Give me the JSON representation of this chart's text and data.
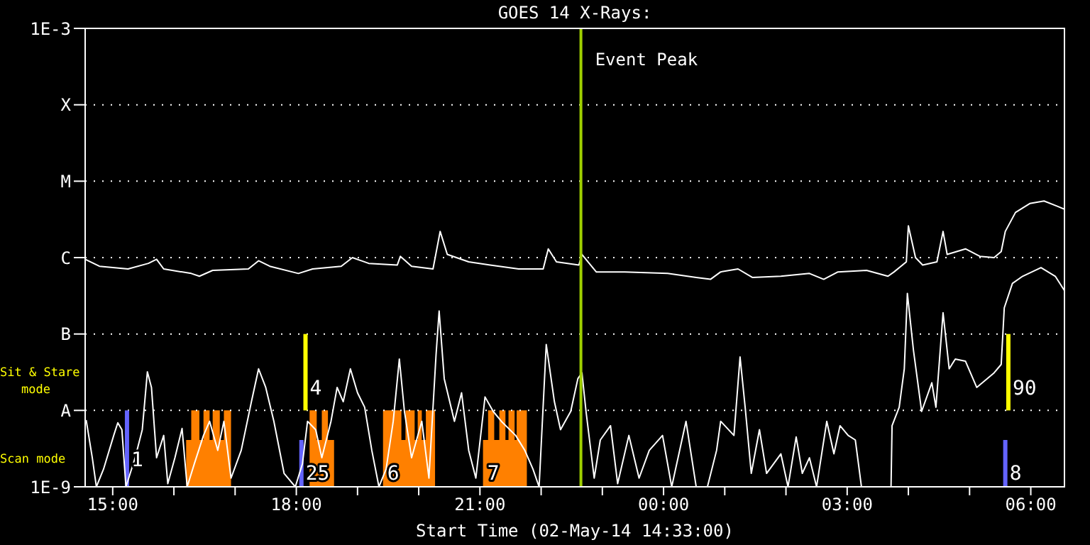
{
  "chart_data": {
    "type": "line",
    "title": "GOES 14 X-Rays:",
    "xlabel": "Start Time (02-May-14 14:33:00)",
    "log": "y",
    "grid": "y",
    "xlim": [
      "--05-02T14:33",
      "--05-03T06:33"
    ],
    "xticks": [
      {
        "value": "--05-02T15:00",
        "label": "15:00"
      },
      {
        "value": "--05-02T16:00",
        "label": null
      },
      {
        "value": "--05-02T17:00",
        "label": null
      },
      {
        "value": "--05-02T18:00",
        "label": "18:00"
      },
      {
        "value": "--05-02T19:00",
        "label": null
      },
      {
        "value": "--05-02T20:00",
        "label": null
      },
      {
        "value": "--05-02T21:00",
        "label": "21:00"
      },
      {
        "value": "--05-02T22:00",
        "label": null
      },
      {
        "value": "--05-02T23:00",
        "label": null
      },
      {
        "value": "--05-03T00:00",
        "label": "00:00"
      },
      {
        "value": "--05-03T01:00",
        "label": null
      },
      {
        "value": "--05-03T02:00",
        "label": null
      },
      {
        "value": "--05-03T03:00",
        "label": "03:00"
      },
      {
        "value": "--05-03T04:00",
        "label": null
      },
      {
        "value": "--05-03T05:00",
        "label": null
      },
      {
        "value": "--05-03T06:00",
        "label": "06:00"
      }
    ],
    "ylim": [
      1e-09,
      0.001
    ],
    "yticks": [
      {
        "value": 1e-09,
        "label": "1E-9"
      },
      {
        "value": 1e-08,
        "label": "A"
      },
      {
        "value": 1e-07,
        "label": "B"
      },
      {
        "value": 1e-06,
        "label": "C"
      },
      {
        "value": 1e-05,
        "label": "M"
      },
      {
        "value": 0.0001,
        "label": "X"
      },
      {
        "value": 0.001,
        "label": "1E-3"
      }
    ],
    "ref_lines": [
      {
        "axis": "x",
        "value": "--05-02T22:39",
        "label": "Event Peak",
        "color": "#a0d000"
      }
    ],
    "annotations": [
      "Sit & Stare mode",
      "Scan mode",
      {
        "text": "1",
        "x": "--05-02T15:14",
        "y": 2.4e-09
      },
      {
        "text": "4",
        "x": "--05-02T18:09",
        "y": 2.1e-08
      },
      {
        "text": "25",
        "x": "--05-02T18:05",
        "y": 1.6e-09
      },
      {
        "text": "6",
        "x": "--05-02T19:25",
        "y": 1.6e-09
      },
      {
        "text": "7",
        "x": "--05-02T21:03",
        "y": 1.6e-09
      },
      {
        "text": "90",
        "x": "--05-03T05:38",
        "y": 2.1e-08
      },
      {
        "text": "8",
        "x": "--05-03T05:35",
        "y": 1.6e-09
      }
    ],
    "series": [
      {
        "type": "area",
        "color": "#ff8000",
        "x": [
          "--05-02T16:12",
          "--05-02T16:17",
          "--05-02T16:25",
          "--05-02T16:29",
          "--05-02T16:35",
          "--05-02T16:38",
          "--05-02T16:45",
          "--05-02T16:49",
          "--05-02T16:56",
          "--05-02T18:13",
          "--05-02T18:20",
          "--05-02T18:25",
          "--05-02T18:31",
          "--05-02T18:37",
          "--05-02T19:25",
          "--05-02T19:43",
          "--05-02T19:47",
          "--05-02T19:56",
          "--05-02T19:59",
          "--05-02T20:03",
          "--05-02T20:07",
          "--05-02T20:16",
          "--05-02T21:03",
          "--05-02T21:08",
          "--05-02T21:14",
          "--05-02T21:19",
          "--05-02T21:25",
          "--05-02T21:28",
          "--05-02T21:34",
          "--05-02T21:36",
          "--05-02T21:46"
        ],
        "values": [
          4.1e-09,
          1e-08,
          4.1e-09,
          1e-08,
          4.1e-09,
          1e-08,
          4.1e-09,
          1e-08,
          1e-09,
          1e-08,
          4.1e-09,
          1e-08,
          4.1e-09,
          1e-09,
          1e-08,
          4.1e-09,
          1e-08,
          4.1e-09,
          1e-08,
          4.1e-09,
          1e-08,
          1e-09,
          4.1e-09,
          1e-08,
          4.1e-09,
          1e-08,
          4.1e-09,
          1e-08,
          4.1e-09,
          1e-08,
          1e-09
        ]
      },
      {
        "type": "line",
        "color": "#6464ff",
        "x": [
          "--05-02T15:14",
          "--05-02T15:14"
        ],
        "values": [
          1e-09,
          1e-08
        ]
      },
      {
        "type": "line",
        "color": "#6464ff",
        "x": [
          "--05-02T18:05",
          "--05-02T18:05"
        ],
        "values": [
          1e-09,
          4.1e-09
        ]
      },
      {
        "type": "line",
        "color": "#6464ff",
        "x": [
          "--05-03T05:35",
          "--05-03T05:35"
        ],
        "values": [
          1e-09,
          4.1e-09
        ]
      },
      {
        "type": "line",
        "color": "#ffff00",
        "x": [
          "--05-02T18:09",
          "--05-02T18:09"
        ],
        "values": [
          1e-08,
          1e-07
        ]
      },
      {
        "type": "line",
        "color": "#ffff00",
        "x": [
          "--05-03T05:38",
          "--05-03T05:38"
        ],
        "values": [
          1e-08,
          1e-07
        ]
      },
      {
        "type": "line",
        "color": "#ffffff",
        "x": [
          "--05-02T14:33",
          "--05-02T14:47",
          "--05-02T15:15",
          "--05-02T15:35",
          "--05-02T15:43",
          "--05-02T15:50",
          "--05-02T16:17",
          "--05-02T16:25",
          "--05-02T16:38",
          "--05-02T17:13",
          "--05-02T17:23",
          "--05-02T17:34",
          "--05-02T18:02",
          "--05-02T18:16",
          "--05-02T18:44",
          "--05-02T18:55",
          "--05-02T19:11",
          "--05-02T19:39",
          "--05-02T19:42",
          "--05-02T19:53",
          "--05-02T20:14",
          "--05-02T20:21",
          "--05-02T20:28",
          "--05-02T20:49",
          "--05-02T21:10",
          "--05-02T21:38",
          "--05-02T22:02",
          "--05-02T22:07",
          "--05-02T22:15",
          "--05-02T22:37",
          "--05-02T22:40",
          "--05-02T22:54",
          "--05-02T23:22",
          "--05-03T00:04",
          "--05-03T00:32",
          "--05-03T00:46",
          "--05-03T00:56",
          "--05-03T01:13",
          "--05-03T01:27",
          "--05-03T01:55",
          "--05-03T02:23",
          "--05-03T02:37",
          "--05-03T02:51",
          "--05-03T03:19",
          "--05-03T03:40",
          "--05-03T03:46",
          "--05-03T03:58",
          "--05-03T04:00",
          "--05-03T04:07",
          "--05-03T04:14",
          "--05-03T04:28",
          "--05-03T04:34",
          "--05-03T04:38",
          "--05-03T04:56",
          "--05-03T05:10",
          "--05-03T05:24",
          "--05-03T05:31",
          "--05-03T05:35",
          "--05-03T05:45",
          "--05-03T05:59",
          "--05-03T06:13",
          "--05-03T06:26",
          "--05-03T06:33"
        ],
        "values": [
          9.5e-07,
          7.7e-07,
          7.1e-07,
          8.4e-07,
          9.5e-07,
          7.1e-07,
          6.2e-07,
          5.7e-07,
          6.8e-07,
          7.1e-07,
          9.1e-07,
          7.7e-07,
          6.2e-07,
          7.1e-07,
          7.7e-07,
          1e-06,
          8.4e-07,
          8e-07,
          1.04e-06,
          7.7e-07,
          7.1e-07,
          2.2e-06,
          1.1e-06,
          8.8e-07,
          8e-07,
          7.1e-07,
          7.1e-07,
          1.3e-06,
          8.8e-07,
          8e-07,
          1.1e-06,
          6.5e-07,
          6.5e-07,
          6.2e-07,
          5.5e-07,
          5.2e-07,
          6.5e-07,
          7.1e-07,
          5.5e-07,
          5.7e-07,
          6.2e-07,
          5.2e-07,
          6.5e-07,
          6.8e-07,
          5.7e-07,
          6.5e-07,
          8.8e-07,
          2.6e-06,
          1e-06,
          8e-07,
          8.8e-07,
          2.2e-06,
          1.1e-06,
          1.3e-06,
          1.04e-06,
          1e-06,
          1.2e-06,
          2.2e-06,
          3.9e-06,
          5.1e-06,
          5.5e-06,
          4.7e-06,
          4.3e-06
        ]
      },
      {
        "type": "line",
        "color": "#ffffff",
        "x": [
          "--05-02T14:34",
          "--05-02T14:40",
          "--05-02T14:44",
          "--05-02T14:51",
          "--05-02T15:01",
          "--05-02T15:05",
          "--05-02T15:09",
          "--05-02T15:13",
          "--05-02T15:22",
          "--05-02T15:29",
          "--05-02T15:34",
          "--05-02T15:38",
          "--05-02T15:43",
          "--05-02T15:50",
          "--05-02T15:54",
          "--05-02T16:01",
          "--05-02T16:08",
          "--05-02T16:13",
          "--05-02T16:20",
          "--05-02T16:29",
          "--05-02T16:35",
          "--05-02T16:43",
          "--05-02T16:49",
          "--05-02T16:56",
          "--05-02T17:06",
          "--05-02T17:16",
          "--05-02T17:23",
          "--05-02T17:30",
          "--05-02T17:38",
          "--05-02T17:48",
          "--05-02T17:59",
          "--05-02T18:06",
          "--05-02T18:11",
          "--05-02T18:19",
          "--05-02T18:25",
          "--05-02T18:34",
          "--05-02T18:40",
          "--05-02T18:46",
          "--05-02T18:53",
          "--05-02T19:00",
          "--05-02T19:07",
          "--05-02T19:14",
          "--05-02T19:21",
          "--05-02T19:28",
          "--05-02T19:35",
          "--05-02T19:41",
          "--05-02T19:46",
          "--05-02T19:53",
          "--05-02T20:03",
          "--05-02T20:10",
          "--05-02T20:17",
          "--05-02T20:20",
          "--05-02T20:25",
          "--05-02T20:35",
          "--05-02T20:42",
          "--05-02T20:49",
          "--05-02T20:56",
          "--05-02T21:05",
          "--05-02T21:13",
          "--05-02T21:21",
          "--05-02T21:35",
          "--05-02T21:44",
          "--05-02T21:52",
          "--05-02T21:58",
          "--05-02T22:05",
          "--05-02T22:13",
          "--05-02T22:19",
          "--05-02T22:29",
          "--05-02T22:36",
          "--05-02T22:40",
          "--05-02T22:44",
          "--05-02T22:52",
          "--05-02T22:58",
          "--05-02T23:08",
          "--05-02T23:15",
          "--05-02T23:26",
          "--05-02T23:36",
          "--05-02T23:46",
          "--05-02T23:59",
          "--05-03T00:08",
          "--05-03T00:22",
          "--05-03T00:32",
          "--05-03T00:43",
          "--05-03T00:52",
          "--05-03T00:56",
          "--05-03T01:09",
          "--05-03T01:15",
          "--05-03T01:20",
          "--05-03T01:26",
          "--05-03T01:34",
          "--05-03T01:41",
          "--05-03T01:55",
          "--05-03T02:02",
          "--05-03T02:10",
          "--05-03T02:16",
          "--05-03T02:23",
          "--05-03T02:30",
          "--05-03T02:40",
          "--05-03T02:47",
          "--05-03T02:53",
          "--05-03T03:01",
          "--05-03T03:08",
          "--05-03T03:14",
          "--05-03T03:43",
          "--05-03T03:44",
          "--05-03T03:51",
          "--05-03T03:56",
          "--05-03T03:59",
          "--05-03T04:05",
          "--05-03T04:13",
          "--05-03T04:23",
          "--05-03T04:27",
          "--05-03T04:34",
          "--05-03T04:40",
          "--05-03T04:46",
          "--05-03T04:56",
          "--05-03T05:07",
          "--05-03T05:24",
          "--05-03T05:31",
          "--05-03T05:34",
          "--05-03T05:42",
          "--05-03T05:52",
          "--05-03T06:10",
          "--05-03T06:24",
          "--05-03T06:33"
        ],
        "values": [
          7.5e-09,
          2.4e-09,
          1e-09,
          1.7e-09,
          4.7e-09,
          6.9e-09,
          5.6e-09,
          1e-09,
          2.4e-09,
          5.6e-09,
          3.2e-08,
          2e-08,
          2.4e-09,
          4.7e-09,
          1.1e-09,
          2.4e-09,
          5.8e-09,
          1e-09,
          2e-09,
          4.7e-09,
          7.2e-09,
          3e-09,
          7.2e-09,
          1.3e-09,
          3e-09,
          1.3e-08,
          3.5e-08,
          2e-08,
          7.2e-09,
          1.5e-09,
          1e-09,
          2e-09,
          7.2e-09,
          5.6e-09,
          2.4e-09,
          7.2e-09,
          2e-08,
          1.3e-08,
          3.5e-08,
          1.7e-08,
          1.1e-08,
          3e-09,
          1e-09,
          1.7e-09,
          7.2e-09,
          4.7e-08,
          9.7e-09,
          2.4e-09,
          7.2e-09,
          1.3e-09,
          5.4e-08,
          2e-07,
          2.6e-08,
          7.2e-09,
          1.7e-08,
          3e-09,
          1.3e-09,
          1.5e-08,
          9.7e-09,
          7.2e-09,
          4.7e-09,
          3e-09,
          1.7e-09,
          1e-09,
          7.3e-08,
          1.3e-08,
          5.6e-09,
          9.7e-09,
          2.6e-08,
          3.1e-08,
          9.7e-09,
          1.3e-09,
          4.1e-09,
          6.3e-09,
          1.1e-09,
          4.7e-09,
          1.3e-09,
          3e-09,
          4.7e-09,
          1e-09,
          7.2e-09,
          1e-09,
          1e-09,
          3e-09,
          7.2e-09,
          4.7e-09,
          5e-08,
          1.1e-08,
          1.5e-09,
          5.6e-09,
          1.5e-09,
          2.7e-09,
          1e-09,
          4.5e-09,
          1.5e-09,
          2.4e-09,
          1e-09,
          7.2e-09,
          2.7e-09,
          6.3e-09,
          4.7e-09,
          4.1e-09,
          1e-09,
          1e-09,
          6.3e-09,
          1.1e-08,
          3.5e-08,
          3.4e-07,
          6.1e-08,
          9.7e-09,
          2.3e-08,
          1.1e-08,
          1.9e-07,
          3.5e-08,
          4.7e-08,
          4.4e-08,
          2e-08,
          3.1e-08,
          4e-08,
          2.2e-07,
          4.6e-07,
          5.7e-07,
          7.4e-07,
          5.7e-07,
          3.7e-07
        ]
      }
    ]
  }
}
